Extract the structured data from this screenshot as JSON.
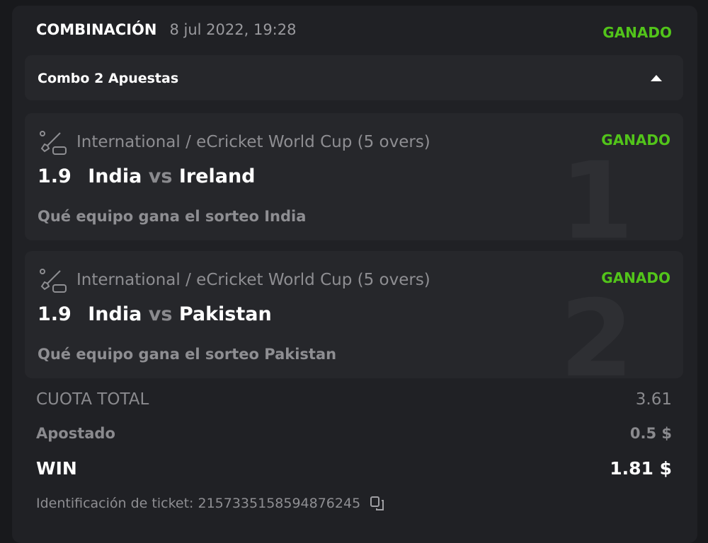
{
  "header": {
    "title": "COMBINACIÓN",
    "date": "8 jul 2022, 19:28",
    "status": "GANADO"
  },
  "combo": {
    "label": "Combo 2 Apuestas"
  },
  "legs": [
    {
      "index": "1",
      "league": "International / eCricket World Cup (5 overs)",
      "status": "GANADO",
      "odds": "1.9",
      "home": "India",
      "vs": "vs",
      "away": "Ireland",
      "market": "Qué equipo gana el sorteo India"
    },
    {
      "index": "2",
      "league": "International / eCricket World Cup (5 overs)",
      "status": "GANADO",
      "odds": "1.9",
      "home": "India",
      "vs": "vs",
      "away": "Pakistan",
      "market": "Qué equipo gana el sorteo Pakistan"
    }
  ],
  "summary": {
    "total_odds_label": "CUOTA TOTAL",
    "total_odds": "3.61",
    "stake_label": "Apostado",
    "stake": "0.5 $",
    "win_label": "WIN",
    "win": "1.81 $"
  },
  "ticket": {
    "label": "Identificación de ticket: 2157335158594876245"
  },
  "colors": {
    "won": "#52c41a"
  }
}
